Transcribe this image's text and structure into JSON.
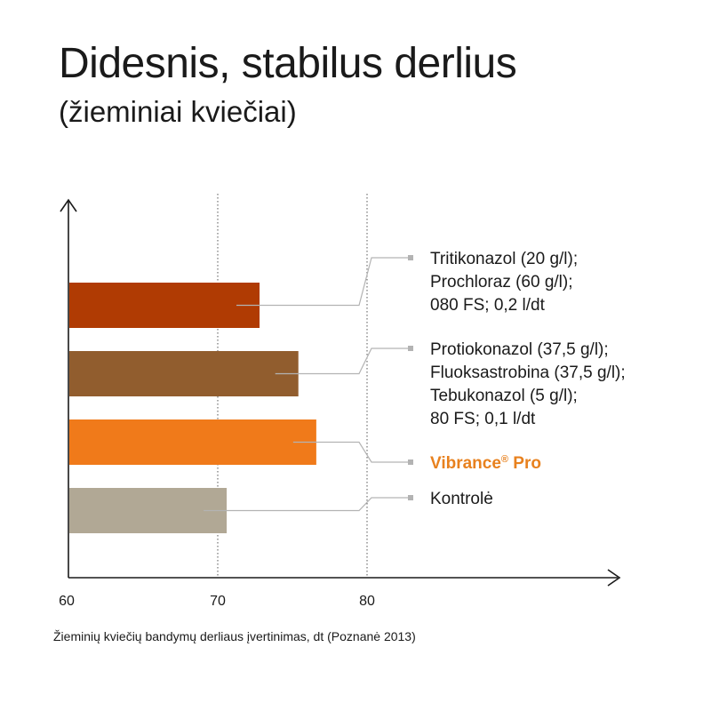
{
  "header": {
    "title": "Didesnis, stabilus derlius",
    "subtitle": "(žieminiai kviečiai)"
  },
  "footnote": "Žieminių kviečių bandymų derliaus įvertinimas, dt  (Poznanė 2013)",
  "chart_data": {
    "type": "bar",
    "orientation": "horizontal",
    "title": "Didesnis, stabilus derlius",
    "subtitle": "(žieminiai kviečiai)",
    "xlabel": "Žieminių kviečių bandymų derliaus įvertinimas, dt  (Poznanė 2013)",
    "ylabel": "",
    "xlim": [
      60,
      87
    ],
    "xticks": [
      "60",
      "70",
      "80"
    ],
    "xtick_values": [
      60,
      70,
      80
    ],
    "grid": "vertical dotted at 70 and 80",
    "legend": "callout labels on right",
    "bars": [
      {
        "value": 72.8,
        "color": "#B03B03",
        "label_lines": [
          "Tritikonazol (20 g/l);",
          "Prochloraz (60 g/l);",
          "080 FS; 0,2 l/dt"
        ],
        "highlight": false
      },
      {
        "value": 75.4,
        "color": "#915D2E",
        "label_lines": [
          "Protiokonazol (37,5 g/l);",
          "Fluoksastrobina (37,5 g/l);",
          "Tebukonazol (5 g/l);",
          "80 FS; 0,1 l/dt"
        ],
        "highlight": false
      },
      {
        "value": 76.6,
        "color": "#F07A1A",
        "label_lines": [
          "Vibrance® Pro"
        ],
        "highlight": true
      },
      {
        "value": 70.6,
        "color": "#B1A895",
        "label_lines": [
          "Kontrolė"
        ],
        "highlight": false
      }
    ],
    "colors": {
      "axis": "#1a1a1a",
      "leader": "#b3b3b3",
      "highlight_text": "#E8811E"
    }
  }
}
